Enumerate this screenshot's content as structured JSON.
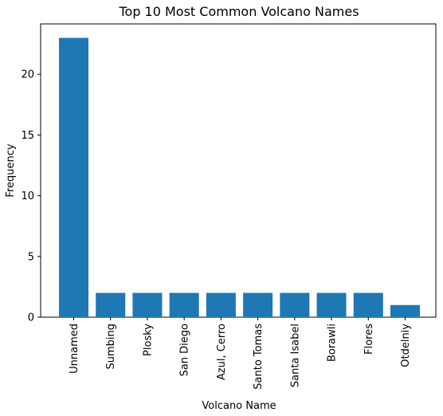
{
  "chart_data": {
    "type": "bar",
    "title": "Top 10 Most Common Volcano Names",
    "xlabel": "Volcano Name",
    "ylabel": "Frequency",
    "categories": [
      "Unnamed",
      "Sumbing",
      "Plosky",
      "San Diego",
      "Azul, Cerro",
      "Santo Tomas",
      "Santa Isabel",
      "Borawli",
      "Flores",
      "Otdelniy"
    ],
    "values": [
      23,
      2,
      2,
      2,
      2,
      2,
      2,
      2,
      2,
      1
    ],
    "ylim": [
      0,
      24.15
    ],
    "yticks": [
      0,
      5,
      10,
      15,
      20
    ],
    "ytick_labels": [
      "0",
      "5",
      "10",
      "15",
      "20"
    ],
    "bar_color": "#1f77b4",
    "grid": false,
    "legend": "none"
  }
}
